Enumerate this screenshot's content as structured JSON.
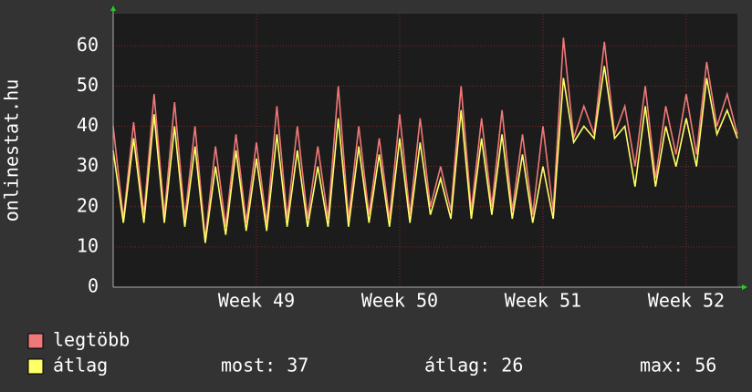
{
  "chart_data": {
    "type": "line",
    "y_label": "onlinestat.hu",
    "x": [
      0,
      0.5,
      1,
      1.5,
      2,
      2.5,
      3,
      3.5,
      4,
      4.5,
      5,
      5.5,
      6,
      6.5,
      7,
      7.5,
      8,
      8.5,
      9,
      9.5,
      10,
      10.5,
      11,
      11.5,
      12,
      12.5,
      13,
      13.5,
      14,
      14.5,
      15,
      15.5,
      16,
      16.5,
      17,
      17.5,
      18,
      18.5,
      19,
      19.5,
      20,
      20.5,
      21,
      21.5,
      22,
      22.5,
      23,
      23.5,
      24,
      24.5,
      25,
      25.5,
      26,
      26.5,
      27,
      27.5,
      28,
      28.5,
      29,
      29.5,
      30,
      30.5
    ],
    "xlim": [
      0,
      30.5
    ],
    "xticks": [
      {
        "value": 7,
        "label": "Week 49"
      },
      {
        "value": 14,
        "label": "Week 50"
      },
      {
        "value": 21,
        "label": "Week 51"
      },
      {
        "value": 28,
        "label": "Week 52"
      }
    ],
    "ylim": [
      0,
      68
    ],
    "yticks": [
      0,
      10,
      20,
      30,
      40,
      50,
      60
    ],
    "grid": true,
    "series": [
      {
        "name": "legtöbb",
        "color": "#f07878",
        "values": [
          40,
          17,
          41,
          18,
          48,
          18,
          46,
          17,
          40,
          12,
          35,
          15,
          38,
          16,
          36,
          16,
          45,
          17,
          40,
          17,
          35,
          17,
          50,
          17,
          40,
          18,
          37,
          17,
          43,
          18,
          42,
          20,
          30,
          19,
          50,
          19,
          42,
          20,
          44,
          19,
          38,
          18,
          40,
          19,
          62,
          37,
          45,
          38,
          61,
          38,
          45,
          30,
          50,
          27,
          45,
          33,
          48,
          33,
          56,
          40,
          48,
          38
        ]
      },
      {
        "name": "átlag",
        "color": "#ffff66",
        "values": [
          34,
          16,
          37,
          16,
          43,
          16,
          40,
          15,
          35,
          11,
          30,
          13,
          34,
          14,
          32,
          14,
          38,
          15,
          34,
          15,
          30,
          15,
          42,
          15,
          35,
          16,
          33,
          15,
          37,
          16,
          36,
          18,
          27,
          17,
          44,
          17,
          37,
          18,
          38,
          17,
          33,
          16,
          30,
          17,
          52,
          36,
          40,
          37,
          55,
          37,
          40,
          25,
          45,
          25,
          40,
          30,
          42,
          30,
          52,
          38,
          44,
          37
        ]
      }
    ],
    "stats": [
      "most: 37",
      "átlag: 26",
      "max: 56"
    ]
  }
}
